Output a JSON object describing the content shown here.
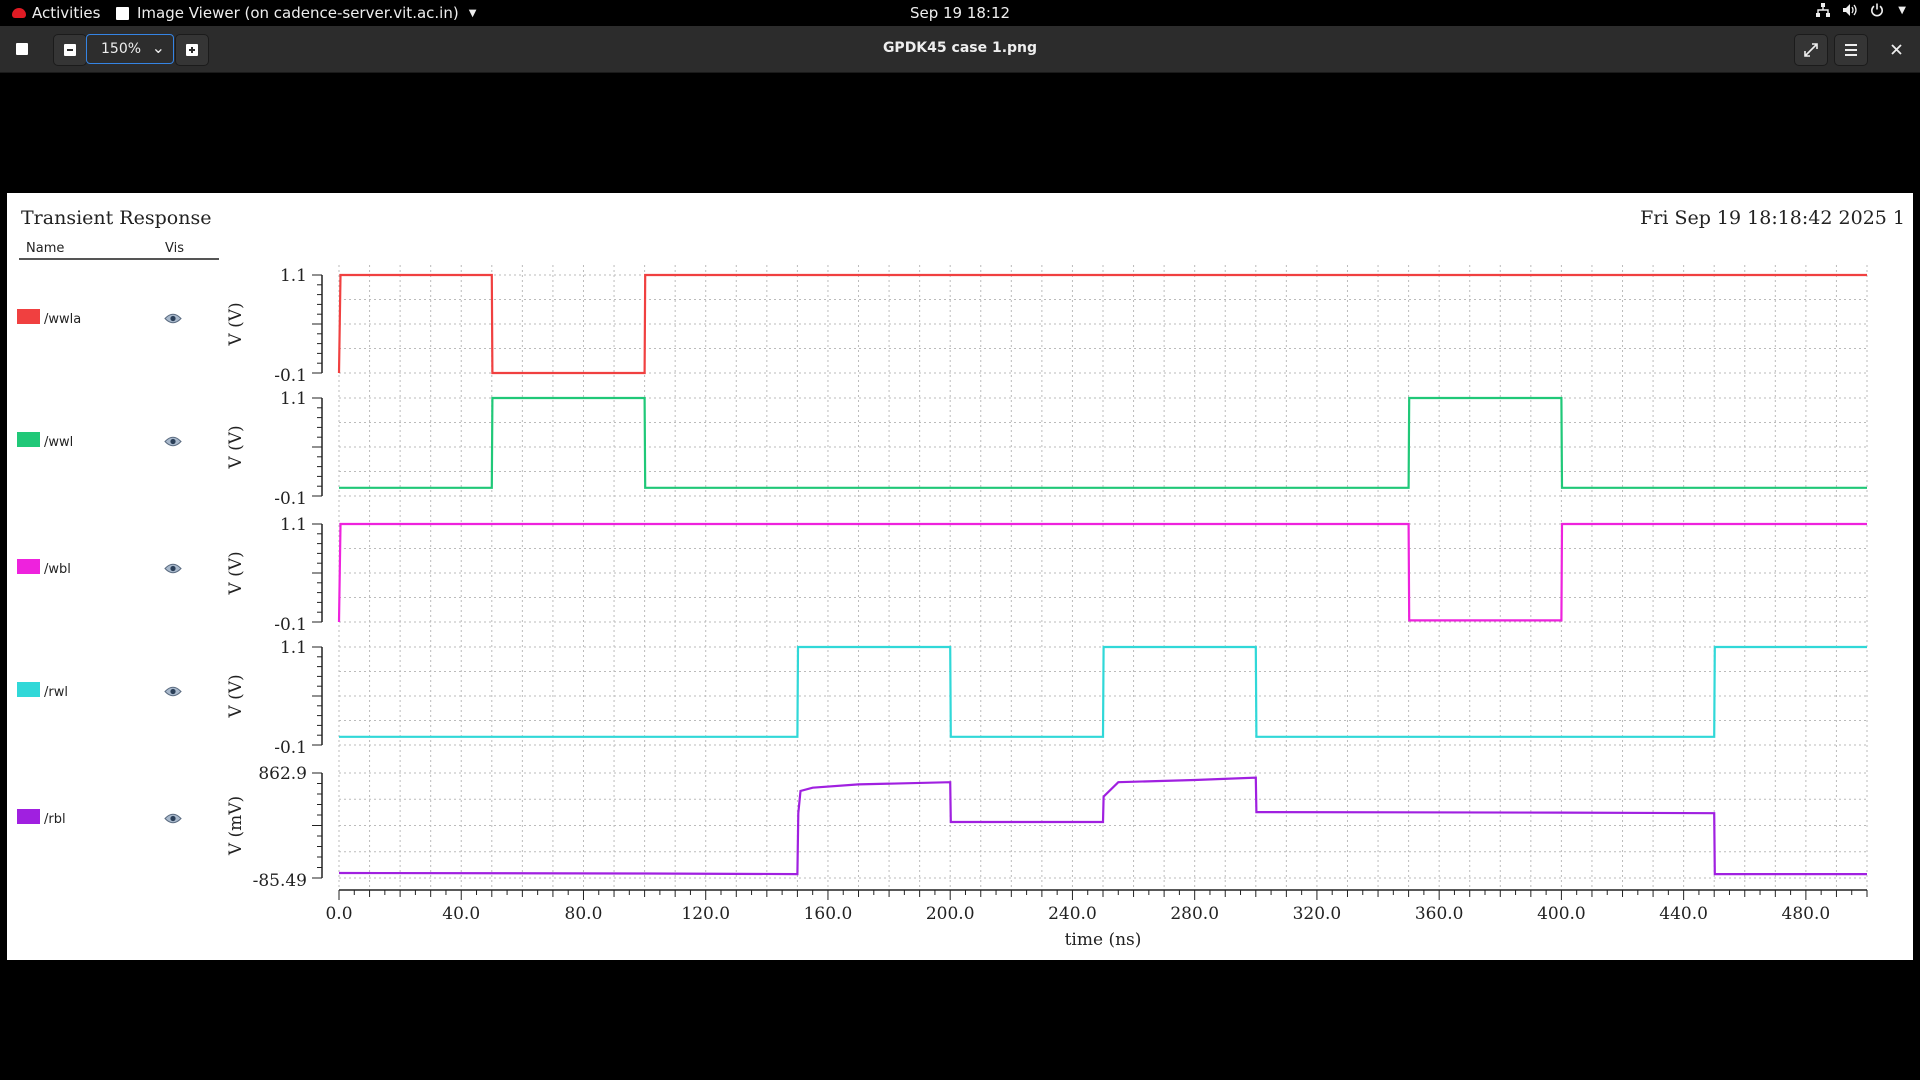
{
  "topbar": {
    "activities": "Activities",
    "app_name": "Image Viewer (on cadence-server.vit.ac.in)",
    "clock": "Sep 19  18:12",
    "icons": [
      "network-icon",
      "volume-icon",
      "power-icon"
    ]
  },
  "viewer": {
    "zoom_value": "150%",
    "title": "GPDK45 case 1.png"
  },
  "plot": {
    "title": "Transient Response",
    "date": "Fri Sep 19 18:18:42 2025   1",
    "legend_header": {
      "name": "Name",
      "vis": "Vis"
    },
    "xlabel": "time (ns)"
  },
  "chart_data": [
    {
      "type": "line",
      "series": [
        {
          "name": "/wwla",
          "color": "#f04040",
          "x": [
            0,
            0.5,
            50,
            50.2,
            100,
            100.2,
            500
          ],
          "y": [
            -0.1,
            1.1,
            1.1,
            -0.1,
            -0.1,
            1.1,
            1.1
          ]
        }
      ],
      "ylabel": "V (V)",
      "yticks": [
        "1.1",
        "-0.1"
      ],
      "ylim": [
        -0.1,
        1.1
      ],
      "xlim": [
        0,
        500
      ]
    },
    {
      "type": "line",
      "series": [
        {
          "name": "/wwl",
          "color": "#20c878",
          "x": [
            0,
            50,
            50.2,
            100,
            100.2,
            350,
            350.2,
            400,
            400.2,
            500
          ],
          "y": [
            0,
            0,
            1.1,
            1.1,
            0,
            0,
            1.1,
            1.1,
            0,
            0
          ]
        }
      ],
      "ylabel": "V (V)",
      "yticks": [
        "1.1",
        "-0.1"
      ],
      "ylim": [
        -0.1,
        1.1
      ],
      "xlim": [
        0,
        500
      ]
    },
    {
      "type": "line",
      "series": [
        {
          "name": "/wbl",
          "color": "#ee22dd",
          "x": [
            0,
            0.5,
            350,
            350.2,
            400,
            400.2,
            500
          ],
          "y": [
            -0.1,
            1.1,
            1.1,
            -0.08,
            -0.08,
            1.1,
            1.1
          ]
        }
      ],
      "ylabel": "V (V)",
      "yticks": [
        "1.1",
        "-0.1"
      ],
      "ylim": [
        -0.1,
        1.1
      ],
      "xlim": [
        0,
        500
      ]
    },
    {
      "type": "line",
      "series": [
        {
          "name": "/rwl",
          "color": "#30d8d8",
          "x": [
            0,
            150,
            150.2,
            200,
            200.2,
            250,
            250.2,
            300,
            300.2,
            450,
            450.2,
            500
          ],
          "y": [
            0,
            0,
            1.1,
            1.1,
            0,
            0,
            1.1,
            1.1,
            0,
            0,
            1.1,
            1.1
          ]
        }
      ],
      "ylabel": "V (V)",
      "yticks": [
        "1.1",
        "-0.1"
      ],
      "ylim": [
        -0.1,
        1.1
      ],
      "xlim": [
        0,
        500
      ]
    },
    {
      "type": "line",
      "series": [
        {
          "name": "/rbl",
          "color": "#a020e0",
          "x": [
            0,
            100,
            150,
            150.3,
            151,
            155,
            170,
            200,
            200.2,
            250,
            250.2,
            255,
            280,
            300,
            300.2,
            400,
            450,
            450.2,
            500
          ],
          "y": [
            -40,
            -45,
            -50,
            500,
            700,
            730,
            760,
            780,
            420,
            420,
            650,
            780,
            800,
            820,
            510,
            505,
            500,
            -50,
            -50
          ]
        }
      ],
      "ylabel": "V (mV)",
      "yticks": [
        "862.9",
        "-85.49"
      ],
      "ylim": [
        -85.49,
        862.9
      ],
      "xlim": [
        0,
        500
      ]
    }
  ],
  "x_axis": {
    "ticks": [
      "0.0",
      "40.0",
      "80.0",
      "120.0",
      "160.0",
      "200.0",
      "240.0",
      "280.0",
      "320.0",
      "360.0",
      "400.0",
      "440.0",
      "480.0"
    ],
    "tick_values": [
      0,
      40,
      80,
      120,
      160,
      200,
      240,
      280,
      320,
      360,
      400,
      440,
      480
    ]
  }
}
